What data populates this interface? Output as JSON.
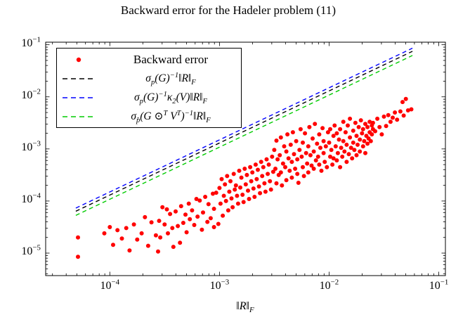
{
  "figure": {
    "title": "Backward error for the Hadeler problem (11)"
  },
  "chart_data": {
    "type": "scatter",
    "title": "Backward error for the Hadeler problem (11)",
    "xlabel": "‖R‖_{F}",
    "ylabel": "",
    "x_scale": "log",
    "y_scale": "log",
    "xlim": [
      2.6e-05,
      0.115
    ],
    "ylim": [
      3.7e-06,
      0.112
    ],
    "grid": false,
    "legend_position": "top-left",
    "x_ticks": [
      {
        "value_log10": -4,
        "label": "10^{−4}"
      },
      {
        "value_log10": -3,
        "label": "10^{−3}"
      },
      {
        "value_log10": -2,
        "label": "10^{−2}"
      },
      {
        "value_log10": -1,
        "label": "10^{−1}"
      }
    ],
    "y_ticks": [
      {
        "value_log10": -1,
        "label": "10^{−1}"
      },
      {
        "value_log10": -2,
        "label": "10^{−2}"
      },
      {
        "value_log10": -3,
        "label": "10^{−3}"
      },
      {
        "value_log10": -4,
        "label": "10^{−4}"
      },
      {
        "value_log10": -5,
        "label": "10^{−5}"
      }
    ],
    "series": [
      {
        "name": "Backward error",
        "kind": "scatter",
        "math": false,
        "color": "#ff0000",
        "marker": "circle",
        "points_log10": [
          [
            -4.29,
            -4.7
          ],
          [
            -4.29,
            -5.07
          ],
          [
            -4.05,
            -4.62
          ],
          [
            -4.0,
            -4.5
          ],
          [
            -3.97,
            -4.84
          ],
          [
            -3.93,
            -4.56
          ],
          [
            -3.89,
            -4.72
          ],
          [
            -3.85,
            -4.52
          ],
          [
            -3.82,
            -4.95
          ],
          [
            -3.78,
            -4.45
          ],
          [
            -3.75,
            -4.74
          ],
          [
            -3.71,
            -4.62
          ],
          [
            -3.68,
            -4.31
          ],
          [
            -3.65,
            -4.86
          ],
          [
            -3.62,
            -4.41
          ],
          [
            -3.58,
            -4.66
          ],
          [
            -3.56,
            -4.97
          ],
          [
            -3.55,
            -4.38
          ],
          [
            -3.54,
            -4.7
          ],
          [
            -3.52,
            -4.12
          ],
          [
            -3.5,
            -4.45
          ],
          [
            -3.48,
            -4.16
          ],
          [
            -3.47,
            -4.62
          ],
          [
            -3.45,
            -4.25
          ],
          [
            -3.43,
            -4.52
          ],
          [
            -3.42,
            -4.88
          ],
          [
            -3.4,
            -4.2
          ],
          [
            -3.38,
            -4.48
          ],
          [
            -3.36,
            -4.8
          ],
          [
            -3.35,
            -4.1
          ],
          [
            -3.33,
            -4.42
          ],
          [
            -3.31,
            -4.26
          ],
          [
            -3.3,
            -4.6
          ],
          [
            -3.28,
            -4.05
          ],
          [
            -3.27,
            -4.35
          ],
          [
            -3.25,
            -4.18
          ],
          [
            -3.23,
            -4.46
          ],
          [
            -3.21,
            -3.96
          ],
          [
            -3.2,
            -4.3
          ],
          [
            -3.18,
            -3.99
          ],
          [
            -3.16,
            -4.55
          ],
          [
            -3.15,
            -4.22
          ],
          [
            -3.13,
            -3.92
          ],
          [
            -3.11,
            -4.4
          ],
          [
            -3.1,
            -4.06
          ],
          [
            -3.08,
            -4.33
          ],
          [
            -3.06,
            -3.86
          ],
          [
            -3.05,
            -4.15
          ],
          [
            -3.05,
            -4.5
          ],
          [
            -3.03,
            -3.84
          ],
          [
            -3.01,
            -4.44
          ],
          [
            -3.0,
            -3.75
          ],
          [
            -2.99,
            -4.05
          ],
          [
            -2.98,
            -3.58
          ],
          [
            -2.97,
            -4.28
          ],
          [
            -2.96,
            -3.9
          ],
          [
            -2.95,
            -3.68
          ],
          [
            -2.94,
            -4.0
          ],
          [
            -2.93,
            -3.52
          ],
          [
            -2.92,
            -4.18
          ],
          [
            -2.91,
            -3.82
          ],
          [
            -2.9,
            -3.62
          ],
          [
            -2.89,
            -3.95
          ],
          [
            -2.88,
            -4.12
          ],
          [
            -2.87,
            -3.48
          ],
          [
            -2.86,
            -3.78
          ],
          [
            -2.85,
            -3.7
          ],
          [
            -2.84,
            -3.9
          ],
          [
            -2.83,
            -4.05
          ],
          [
            -2.82,
            -3.42
          ],
          [
            -2.81,
            -3.74
          ],
          [
            -2.8,
            -3.55
          ],
          [
            -2.79,
            -3.88
          ],
          [
            -2.78,
            -4.02
          ],
          [
            -2.77,
            -3.38
          ],
          [
            -2.76,
            -3.68
          ],
          [
            -2.75,
            -3.5
          ],
          [
            -2.74,
            -3.8
          ],
          [
            -2.73,
            -3.96
          ],
          [
            -2.72,
            -3.35
          ],
          [
            -2.71,
            -3.62
          ],
          [
            -2.7,
            -3.45
          ],
          [
            -2.69,
            -3.76
          ],
          [
            -2.68,
            -3.92
          ],
          [
            -2.67,
            -3.3
          ],
          [
            -2.66,
            -3.58
          ],
          [
            -2.65,
            -3.4
          ],
          [
            -2.64,
            -3.72
          ],
          [
            -2.63,
            -3.85
          ],
          [
            -2.62,
            -3.25
          ],
          [
            -2.61,
            -3.52
          ],
          [
            -2.6,
            -3.35
          ],
          [
            -2.59,
            -3.66
          ],
          [
            -2.58,
            -3.82
          ],
          [
            -2.57,
            -3.2
          ],
          [
            -2.56,
            -3.48
          ],
          [
            -2.55,
            -3.3
          ],
          [
            -2.54,
            -3.62
          ],
          [
            -2.53,
            -3.78
          ],
          [
            -2.52,
            -3.15
          ],
          [
            -2.51,
            -3.44
          ],
          [
            -2.5,
            -3.02
          ],
          [
            -2.49,
            -3.38
          ],
          [
            -2.48,
            -3.66
          ],
          [
            -2.48,
            -2.84
          ],
          [
            -2.47,
            -3.2
          ],
          [
            -2.46,
            -3.5
          ],
          [
            -2.45,
            -3.12
          ],
          [
            -2.44,
            -2.78
          ],
          [
            -2.44,
            -3.45
          ],
          [
            -2.43,
            -3.7
          ],
          [
            -2.42,
            -3.28
          ],
          [
            -2.41,
            -2.95
          ],
          [
            -2.4,
            -3.35
          ],
          [
            -2.39,
            -3.05
          ],
          [
            -2.39,
            -3.6
          ],
          [
            -2.38,
            -2.72
          ],
          [
            -2.37,
            -3.18
          ],
          [
            -2.36,
            -3.42
          ],
          [
            -2.35,
            -2.92
          ],
          [
            -2.34,
            -3.25
          ],
          [
            -2.34,
            -3.55
          ],
          [
            -2.33,
            -2.68
          ],
          [
            -2.32,
            -3.1
          ],
          [
            -2.31,
            -3.38
          ],
          [
            -2.3,
            -2.85
          ],
          [
            -2.29,
            -3.2
          ],
          [
            -2.29,
            -3.48
          ],
          [
            -2.28,
            -3.65
          ],
          [
            -2.27,
            -3.02
          ],
          [
            -2.26,
            -2.62
          ],
          [
            -2.25,
            -3.15
          ],
          [
            -2.24,
            -3.35
          ],
          [
            -2.24,
            -2.88
          ],
          [
            -2.23,
            -3.52
          ],
          [
            -2.22,
            -2.7
          ],
          [
            -2.21,
            -3.08
          ],
          [
            -2.2,
            -3.28
          ],
          [
            -2.19,
            -2.95
          ],
          [
            -2.19,
            -3.45
          ],
          [
            -2.18,
            -2.58
          ],
          [
            -2.17,
            -3.12
          ],
          [
            -2.16,
            -3.32
          ],
          [
            -2.15,
            -2.8
          ],
          [
            -2.14,
            -3.05
          ],
          [
            -2.14,
            -3.38
          ],
          [
            -2.13,
            -2.52
          ],
          [
            -2.12,
            -3.22
          ],
          [
            -2.11,
            -2.9
          ],
          [
            -2.1,
            -3.15
          ],
          [
            -2.09,
            -2.72
          ],
          [
            -2.09,
            -3.3
          ],
          [
            -2.08,
            -2.98
          ],
          [
            -2.07,
            -3.42
          ],
          [
            -2.06,
            -2.6
          ],
          [
            -2.05,
            -3.08
          ],
          [
            -2.05,
            -2.85
          ],
          [
            -2.04,
            -3.25
          ],
          [
            -2.03,
            -2.95
          ],
          [
            -2.02,
            -3.35
          ],
          [
            -2.01,
            -2.68
          ],
          [
            -2.0,
            -2.88
          ],
          [
            -1.99,
            -3.15
          ],
          [
            -1.99,
            -2.62
          ],
          [
            -1.98,
            -3.02
          ],
          [
            -1.97,
            -3.3
          ],
          [
            -1.96,
            -2.75
          ],
          [
            -1.96,
            -3.18
          ],
          [
            -1.95,
            -2.55
          ],
          [
            -1.94,
            -2.95
          ],
          [
            -1.93,
            -3.22
          ],
          [
            -1.93,
            -2.7
          ],
          [
            -1.92,
            -3.08
          ],
          [
            -1.91,
            -2.82
          ],
          [
            -1.9,
            -3.35
          ],
          [
            -1.9,
            -2.62
          ],
          [
            -1.89,
            -2.98
          ],
          [
            -1.88,
            -3.15
          ],
          [
            -1.87,
            -2.48
          ],
          [
            -1.87,
            -2.85
          ],
          [
            -1.86,
            -3.05
          ],
          [
            -1.85,
            -2.68
          ],
          [
            -1.84,
            -3.25
          ],
          [
            -1.84,
            -2.92
          ],
          [
            -1.83,
            -2.55
          ],
          [
            -1.82,
            -3.1
          ],
          [
            -1.81,
            -2.78
          ],
          [
            -1.81,
            -2.42
          ],
          [
            -1.8,
            -2.98
          ],
          [
            -1.79,
            -3.18
          ],
          [
            -1.78,
            -2.65
          ],
          [
            -1.78,
            -2.88
          ],
          [
            -1.77,
            -3.02
          ],
          [
            -1.76,
            -2.5
          ],
          [
            -1.75,
            -2.75
          ],
          [
            -1.75,
            -3.12
          ],
          [
            -1.74,
            -2.92
          ],
          [
            -1.73,
            -2.58
          ],
          [
            -1.72,
            -2.82
          ],
          [
            -1.72,
            -3.05
          ],
          [
            -1.71,
            -2.45
          ],
          [
            -1.7,
            -2.7
          ],
          [
            -1.69,
            -2.95
          ],
          [
            -1.69,
            -2.62
          ],
          [
            -1.68,
            -2.85
          ],
          [
            -1.67,
            -3.08
          ],
          [
            -1.67,
            -2.52
          ],
          [
            -1.66,
            -2.75
          ],
          [
            -1.65,
            -2.9
          ],
          [
            -1.65,
            -2.58
          ],
          [
            -1.64,
            -2.8
          ],
          [
            -1.63,
            -2.48
          ],
          [
            -1.63,
            -2.68
          ],
          [
            -1.62,
            -2.85
          ],
          [
            -1.61,
            -2.55
          ],
          [
            -1.61,
            -2.72
          ],
          [
            -1.6,
            -2.62
          ],
          [
            -1.6,
            -2.5
          ],
          [
            -1.58,
            -2.66
          ],
          [
            -1.56,
            -2.42
          ],
          [
            -1.54,
            -2.58
          ],
          [
            -1.52,
            -2.72
          ],
          [
            -1.5,
            -2.38
          ],
          [
            -1.48,
            -2.56
          ],
          [
            -1.46,
            -2.35
          ],
          [
            -1.44,
            -2.48
          ],
          [
            -1.42,
            -2.4
          ],
          [
            -1.4,
            -2.3
          ],
          [
            -1.38,
            -2.44
          ],
          [
            -1.35,
            -2.28
          ],
          [
            -1.33,
            -2.1
          ],
          [
            -1.32,
            -2.36
          ],
          [
            -1.3,
            -2.04
          ],
          [
            -1.28,
            -2.26
          ],
          [
            -1.25,
            -2.24
          ]
        ]
      },
      {
        "name": "σ_{p}(G)^{−1}‖R‖_{F}",
        "kind": "line",
        "math": true,
        "style": "dashed",
        "color": "#000000",
        "x_log10": [
          -4.31,
          -1.24
        ],
        "y_log10": [
          -4.196,
          -1.126
        ]
      },
      {
        "name": "σ_{p}(G)^{−1}κ_{2}(V)‖R‖_{F}",
        "kind": "line",
        "math": true,
        "style": "dashed",
        "color": "#0000ff",
        "x_log10": [
          -4.31,
          -1.24
        ],
        "y_log10": [
          -4.136,
          -1.066
        ]
      },
      {
        "name": "σ_{p̂}(G ⊙^{T} V^{T})^{−1}‖R‖_{F}",
        "kind": "line",
        "math": true,
        "style": "dashed",
        "color": "#00cc00",
        "x_log10": [
          -4.31,
          -1.24
        ],
        "y_log10": [
          -4.276,
          -1.206
        ]
      }
    ]
  }
}
